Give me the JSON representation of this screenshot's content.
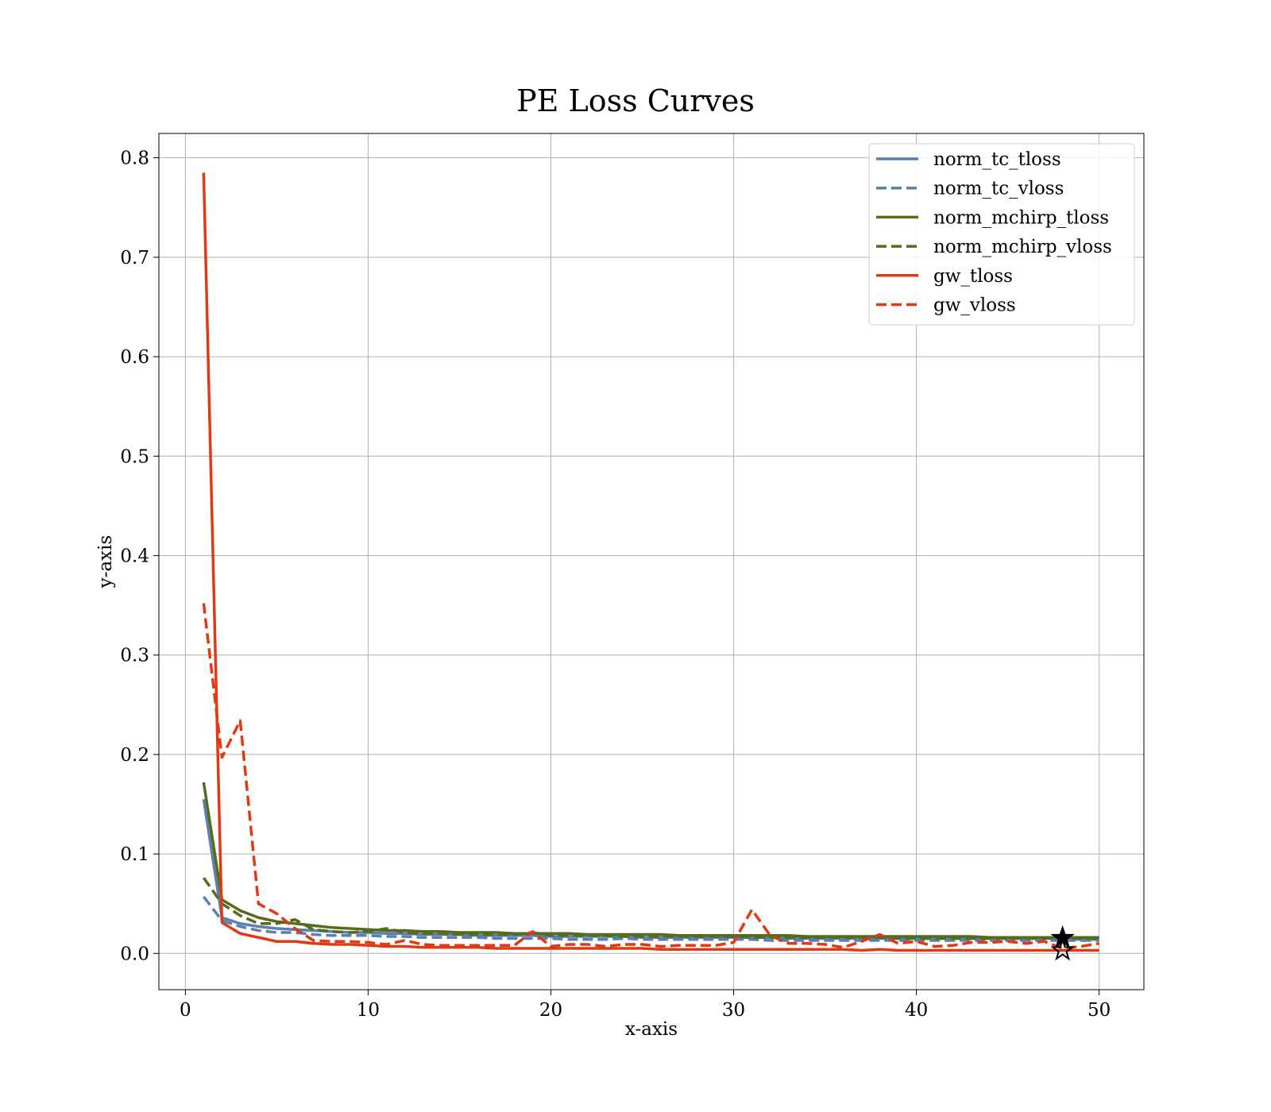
{
  "chart_data": {
    "type": "line",
    "title": "PE Loss Curves",
    "xlabel": "x-axis",
    "ylabel": "y-axis",
    "xlim": [
      -1.45,
      52.45
    ],
    "ylim": [
      -0.0365,
      0.8245
    ],
    "xticks": [
      0,
      10,
      20,
      30,
      40,
      50
    ],
    "yticks": [
      0.0,
      0.1,
      0.2,
      0.3,
      0.4,
      0.5,
      0.6,
      0.7,
      0.8
    ],
    "xtick_labels": [
      "0",
      "10",
      "20",
      "30",
      "40",
      "50"
    ],
    "ytick_labels": [
      "0.0",
      "0.1",
      "0.2",
      "0.3",
      "0.4",
      "0.5",
      "0.6",
      "0.7",
      "0.8"
    ],
    "grid": true,
    "legend_position": "top-right",
    "x": [
      1,
      2,
      3,
      4,
      5,
      6,
      7,
      8,
      9,
      10,
      11,
      12,
      13,
      14,
      15,
      16,
      17,
      18,
      19,
      20,
      21,
      22,
      23,
      24,
      25,
      26,
      27,
      28,
      29,
      30,
      31,
      32,
      33,
      34,
      35,
      36,
      37,
      38,
      39,
      40,
      41,
      42,
      43,
      44,
      45,
      46,
      47,
      48,
      49,
      50
    ],
    "series": [
      {
        "name": "norm_tc_tloss",
        "color": "#5b7fae",
        "dash": "solid",
        "values": [
          0.155,
          0.036,
          0.03,
          0.027,
          0.025,
          0.024,
          0.023,
          0.022,
          0.021,
          0.021,
          0.02,
          0.02,
          0.019,
          0.019,
          0.019,
          0.018,
          0.018,
          0.018,
          0.018,
          0.017,
          0.017,
          0.017,
          0.017,
          0.017,
          0.016,
          0.016,
          0.016,
          0.016,
          0.016,
          0.016,
          0.016,
          0.016,
          0.015,
          0.015,
          0.015,
          0.015,
          0.015,
          0.015,
          0.015,
          0.015,
          0.015,
          0.015,
          0.015,
          0.015,
          0.015,
          0.015,
          0.015,
          0.015,
          0.014,
          0.014
        ]
      },
      {
        "name": "norm_tc_vloss",
        "color": "#5b7fae",
        "dash": "dashed",
        "values": [
          0.057,
          0.033,
          0.027,
          0.023,
          0.021,
          0.021,
          0.019,
          0.018,
          0.018,
          0.018,
          0.017,
          0.017,
          0.016,
          0.016,
          0.016,
          0.016,
          0.015,
          0.015,
          0.015,
          0.015,
          0.014,
          0.014,
          0.014,
          0.015,
          0.014,
          0.014,
          0.014,
          0.014,
          0.014,
          0.014,
          0.014,
          0.013,
          0.013,
          0.013,
          0.013,
          0.013,
          0.013,
          0.013,
          0.013,
          0.013,
          0.013,
          0.013,
          0.013,
          0.013,
          0.013,
          0.013,
          0.013,
          0.013,
          0.013,
          0.013
        ]
      },
      {
        "name": "norm_mchirp_tloss",
        "color": "#556b1e",
        "dash": "solid",
        "values": [
          0.172,
          0.054,
          0.043,
          0.036,
          0.032,
          0.03,
          0.028,
          0.026,
          0.025,
          0.024,
          0.023,
          0.023,
          0.022,
          0.022,
          0.021,
          0.021,
          0.021,
          0.02,
          0.02,
          0.02,
          0.02,
          0.019,
          0.019,
          0.019,
          0.019,
          0.019,
          0.018,
          0.018,
          0.018,
          0.018,
          0.018,
          0.018,
          0.018,
          0.017,
          0.017,
          0.017,
          0.017,
          0.017,
          0.017,
          0.017,
          0.017,
          0.017,
          0.017,
          0.016,
          0.016,
          0.016,
          0.016,
          0.016,
          0.016,
          0.016
        ]
      },
      {
        "name": "norm_mchirp_vloss",
        "color": "#556b1e",
        "dash": "dashed",
        "values": [
          0.076,
          0.05,
          0.038,
          0.03,
          0.03,
          0.034,
          0.024,
          0.022,
          0.021,
          0.022,
          0.025,
          0.021,
          0.02,
          0.02,
          0.019,
          0.019,
          0.019,
          0.019,
          0.021,
          0.018,
          0.018,
          0.018,
          0.018,
          0.017,
          0.017,
          0.017,
          0.017,
          0.017,
          0.017,
          0.017,
          0.016,
          0.016,
          0.016,
          0.016,
          0.016,
          0.016,
          0.016,
          0.016,
          0.015,
          0.015,
          0.015,
          0.015,
          0.015,
          0.015,
          0.015,
          0.015,
          0.015,
          0.016,
          0.015,
          0.015
        ]
      },
      {
        "name": "gw_tloss",
        "color": "#e03a14",
        "dash": "solid",
        "values": [
          0.785,
          0.031,
          0.02,
          0.016,
          0.012,
          0.012,
          0.01,
          0.009,
          0.009,
          0.008,
          0.007,
          0.007,
          0.006,
          0.006,
          0.006,
          0.006,
          0.005,
          0.005,
          0.005,
          0.005,
          0.005,
          0.005,
          0.005,
          0.005,
          0.005,
          0.004,
          0.004,
          0.004,
          0.004,
          0.004,
          0.004,
          0.004,
          0.004,
          0.004,
          0.004,
          0.004,
          0.003,
          0.004,
          0.003,
          0.003,
          0.003,
          0.003,
          0.003,
          0.003,
          0.003,
          0.003,
          0.003,
          0.003,
          0.003,
          0.003
        ]
      },
      {
        "name": "gw_vloss",
        "color": "#e03a14",
        "dash": "dashed",
        "values": [
          0.352,
          0.197,
          0.234,
          0.05,
          0.04,
          0.025,
          0.013,
          0.012,
          0.012,
          0.011,
          0.009,
          0.013,
          0.009,
          0.008,
          0.008,
          0.008,
          0.008,
          0.008,
          0.022,
          0.007,
          0.009,
          0.009,
          0.007,
          0.009,
          0.009,
          0.007,
          0.008,
          0.008,
          0.008,
          0.011,
          0.044,
          0.018,
          0.01,
          0.01,
          0.009,
          0.006,
          0.012,
          0.019,
          0.01,
          0.012,
          0.007,
          0.008,
          0.011,
          0.011,
          0.012,
          0.01,
          0.012,
          0.005,
          0.007,
          0.01
        ]
      }
    ],
    "markers": [
      {
        "x": 48,
        "y": 0.0155,
        "style": "filled-star",
        "color": "#000000"
      },
      {
        "x": 48,
        "y": 0.003,
        "style": "hollow-star",
        "color": "#000000"
      }
    ]
  }
}
